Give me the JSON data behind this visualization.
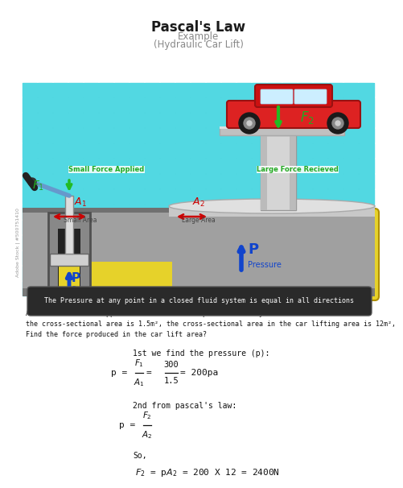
{
  "title": "Pascal's Law",
  "subtitle1": "Example",
  "subtitle2": "(Hydraulic Car Lift)",
  "bg_color": "#ffffff",
  "cyan_bg": "#4eccd6",
  "tile_color": "#52d8e2",
  "tile_edge": "#3ab8c2",
  "gray_floor": "#909090",
  "gray_floor_dark": "#787878",
  "gray_floor_light": "#b0b0b0",
  "yellow_fluid": "#e6d22a",
  "yellow_fluid_dark": "#c8b800",
  "dark_gray_cyl": "#606060",
  "light_gray": "#d8d8d8",
  "banner_bg": "#2a2a2a",
  "banner_text": "The Pressure at any point in a closed fluid system is equal in all directions",
  "body_text1": "A force of 300N is applied to the manual compressor in a hydraulic car lift where",
  "body_text2": "the cross-sectional area is 1.5m², the cross-sectional area in the car lifting area is 12m²,",
  "body_text3": "Find the force produced in the car lift area?",
  "step1": "1st we find the pressure (p):",
  "step2": "2nd from pascal's law:",
  "step3": "So,",
  "label_small_force": "Small Force Applied",
  "label_large_force": "Large Force Recieved",
  "label_small_area": "Small Area",
  "label_large_area": "Large Area",
  "label_pressure": "Pressure",
  "watermark": "Adobe Stock | #500751410",
  "green_arrow": "#22bb22",
  "blue_arrow": "#1144cc",
  "red_arrow": "#dd0000"
}
